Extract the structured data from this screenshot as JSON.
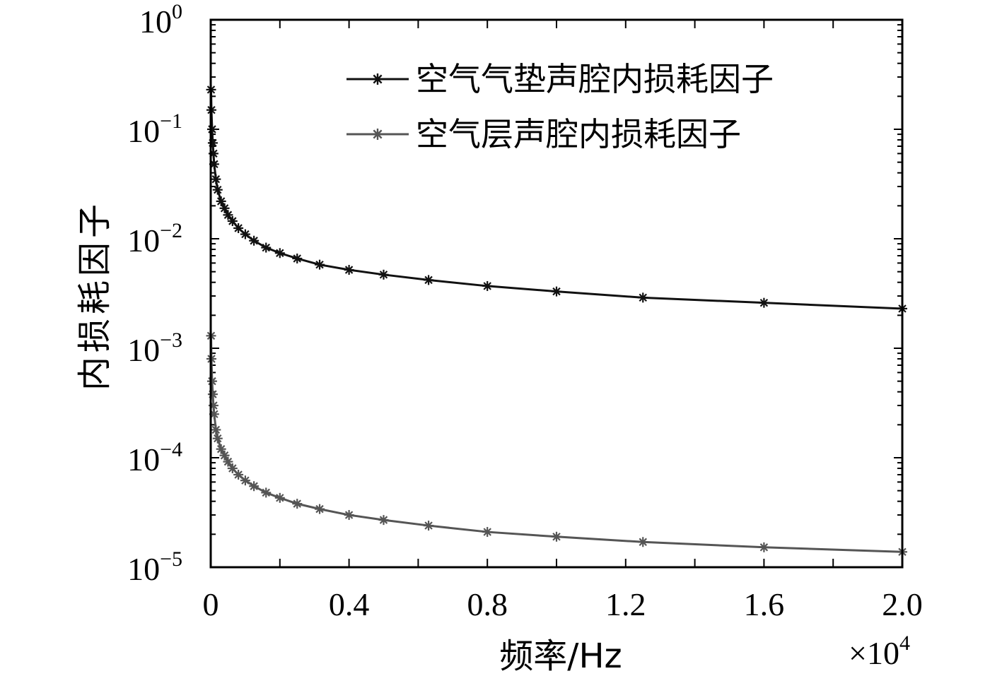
{
  "chart_data": {
    "type": "line",
    "xlabel": "频率/Hz",
    "x_multiplier": "×10",
    "x_multiplier_exp": "4",
    "ylabel": "内损耗因子",
    "yscale": "log",
    "xlim": [
      0,
      20000
    ],
    "ylim": [
      1e-05,
      1
    ],
    "xticks": [
      0,
      4000,
      8000,
      12000,
      16000,
      20000
    ],
    "xtick_labels": [
      "0",
      "0.4",
      "0.8",
      "1.2",
      "1.6",
      "2.0"
    ],
    "yticks": [
      {
        "value": 1,
        "base": "10",
        "exp": "0"
      },
      {
        "value": 0.1,
        "base": "10",
        "exp": "−1"
      },
      {
        "value": 0.01,
        "base": "10",
        "exp": "−2"
      },
      {
        "value": 0.001,
        "base": "10",
        "exp": "−3"
      },
      {
        "value": 0.0001,
        "base": "10",
        "exp": "−4"
      },
      {
        "value": 1e-05,
        "base": "10",
        "exp": "−5"
      }
    ],
    "legend_position": "top-right",
    "series": [
      {
        "name": "空气气垫声腔内损耗因子",
        "color": "#111111",
        "marker": "asterisk",
        "x": [
          10,
          20,
          40,
          60,
          80,
          100,
          150,
          200,
          300,
          400,
          500,
          630,
          800,
          1000,
          1250,
          1600,
          2000,
          2500,
          3150,
          4000,
          5000,
          6300,
          8000,
          10000,
          12500,
          16000,
          20000
        ],
        "y": [
          0.23,
          0.15,
          0.1,
          0.075,
          0.06,
          0.048,
          0.035,
          0.028,
          0.022,
          0.019,
          0.0165,
          0.0145,
          0.0125,
          0.011,
          0.0096,
          0.0083,
          0.0074,
          0.0066,
          0.0058,
          0.0052,
          0.0047,
          0.0042,
          0.0037,
          0.0033,
          0.0029,
          0.0026,
          0.0023
        ]
      },
      {
        "name": "空气层声腔内损耗因子",
        "color": "#555555",
        "marker": "asterisk",
        "x": [
          10,
          20,
          40,
          60,
          80,
          100,
          150,
          200,
          300,
          400,
          500,
          630,
          800,
          1000,
          1250,
          1600,
          2000,
          2500,
          3150,
          4000,
          5000,
          6300,
          8000,
          10000,
          12500,
          16000,
          20000
        ],
        "y": [
          0.0013,
          0.0008,
          0.0005,
          0.00038,
          0.0003,
          0.00025,
          0.00018,
          0.00015,
          0.00012,
          0.000105,
          9.2e-05,
          8e-05,
          7e-05,
          6.2e-05,
          5.5e-05,
          4.8e-05,
          4.3e-05,
          3.8e-05,
          3.4e-05,
          3e-05,
          2.7e-05,
          2.4e-05,
          2.1e-05,
          1.9e-05,
          1.7e-05,
          1.52e-05,
          1.38e-05
        ]
      }
    ]
  }
}
